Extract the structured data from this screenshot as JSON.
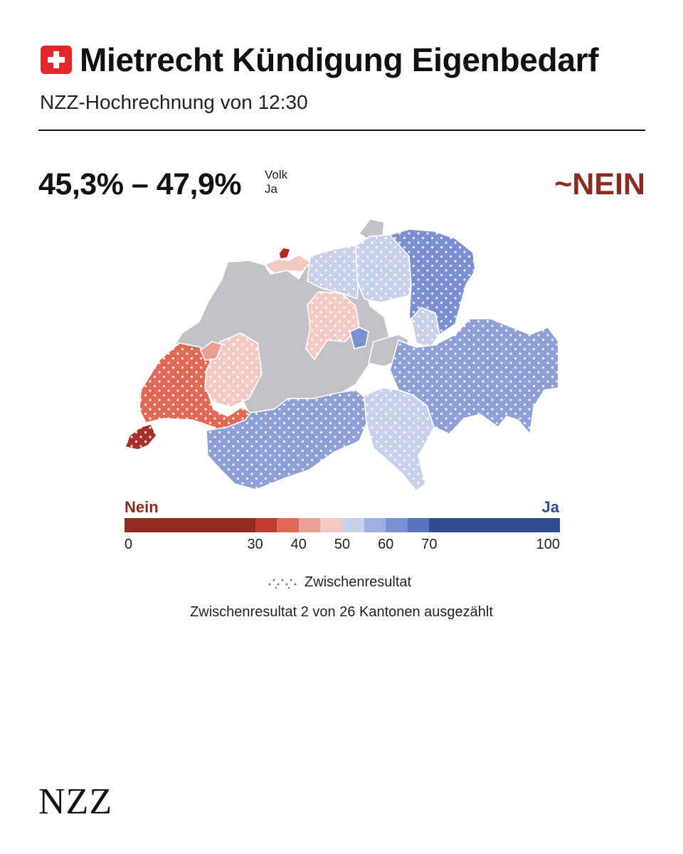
{
  "header": {
    "title": "Mietrecht Kündigung Eigenbedarf",
    "subtitle": "NZZ-Hochrechnung von 12:30",
    "flag_icon": "swiss-flag-icon"
  },
  "result": {
    "range": "45,3% – 47,9%",
    "label_top": "Volk",
    "label_bottom": "Ja",
    "verdict": "~NEIN",
    "verdict_color": "#8e2a1f"
  },
  "map": {
    "name": "Switzerland cantons",
    "colors": {
      "no_result": "#c3c2c8",
      "nein_strong": "#9b2b1f",
      "nein_30_40": "#e06a57",
      "nein_40_45": "#eb9e92",
      "nein_45_50": "#f2c9c3",
      "ja_50_55": "#c8d1ea",
      "ja_55_60": "#9fafdd",
      "ja_60_70": "#7b90d0",
      "ja_strong": "#2f4d93"
    }
  },
  "legend": {
    "nein_label": "Nein",
    "ja_label": "Ja",
    "scale": [
      {
        "from": 0,
        "to": 30,
        "color": "#932a20"
      },
      {
        "from": 30,
        "to": 35,
        "color": "#c03d2e"
      },
      {
        "from": 35,
        "to": 40,
        "color": "#e06a57"
      },
      {
        "from": 40,
        "to": 45,
        "color": "#eb9e92"
      },
      {
        "from": 45,
        "to": 50,
        "color": "#f2c9c3"
      },
      {
        "from": 50,
        "to": 55,
        "color": "#c8d1ea"
      },
      {
        "from": 55,
        "to": 60,
        "color": "#9fafdd"
      },
      {
        "from": 60,
        "to": 65,
        "color": "#7b90d0"
      },
      {
        "from": 65,
        "to": 70,
        "color": "#5a73c0"
      },
      {
        "from": 70,
        "to": 100,
        "color": "#2f4d93"
      }
    ],
    "ticks": [
      "0",
      "30",
      "40",
      "50",
      "60",
      "70",
      "100"
    ],
    "interim_label": "Zwischenresultat",
    "count_note": "Zwischenresultat 2 von 26 Kantonen ausgezählt"
  },
  "footer": {
    "logo": "NZZ"
  }
}
